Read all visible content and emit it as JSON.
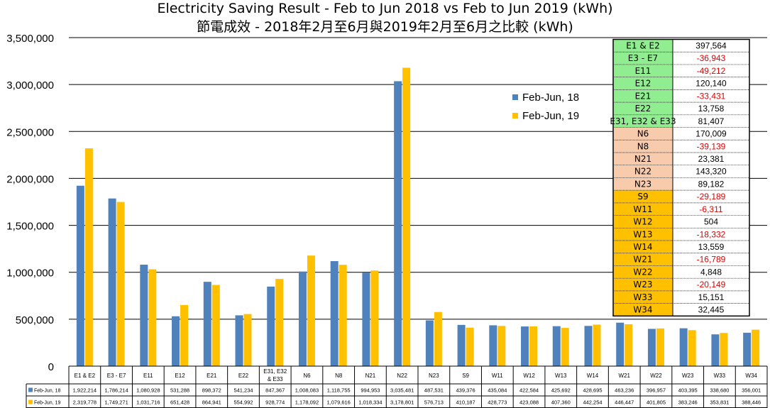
{
  "chart_data": {
    "type": "bar",
    "title": "Electricity Saving Result - Feb to Jun 2018 vs Feb to Jun 2019 (kWh)",
    "subtitle": "節電成效 - 2018年2月至6月與2019年2月至6月之比較 (kWh)",
    "ylim": [
      0,
      3500000
    ],
    "yticks": [
      "0",
      "500,000",
      "1,000,000",
      "1,500,000",
      "2,000,000",
      "2,500,000",
      "3,000,000",
      "3,500,000"
    ],
    "grid": true,
    "legend_position": "top-center",
    "categories": [
      "E1 & E2",
      "E3 - E7",
      "E11",
      "E12",
      "E21",
      "E22",
      "E31, E32 & E33",
      "N6",
      "N8",
      "N21",
      "N22",
      "N23",
      "S9",
      "W11",
      "W12",
      "W13",
      "W14",
      "W21",
      "W22",
      "W23",
      "W33",
      "W34"
    ],
    "series": [
      {
        "name": "Feb-Jun, 18",
        "color": "#4F81BD",
        "values": [
          1922214,
          1786214,
          1080928,
          531288,
          898372,
          541234,
          847367,
          1008083,
          1118755,
          994953,
          3035481,
          487531,
          439376,
          435084,
          422584,
          425692,
          428695,
          463236,
          396957,
          403395,
          338680,
          356001
        ],
        "labels": [
          "1,922,214",
          "1,786,214",
          "1,080,928",
          "531,288",
          "898,372",
          "541,234",
          "847,367",
          "1,008,083",
          "1,118,755",
          "994,953",
          "3,035,481",
          "487,531",
          "439,376",
          "435,084",
          "422,584",
          "425,692",
          "428,695",
          "463,236",
          "396,957",
          "403,395",
          "338,680",
          "356,001"
        ]
      },
      {
        "name": "Feb-Jun, 19",
        "color": "#FFC000",
        "values": [
          2319778,
          1749271,
          1031716,
          651428,
          864941,
          554992,
          928774,
          1178092,
          1079616,
          1018334,
          3178801,
          576713,
          410187,
          428773,
          423088,
          407360,
          442254,
          446447,
          401805,
          383246,
          353831,
          388446
        ],
        "labels": [
          "2,319,778",
          "1,749,271",
          "1,031,716",
          "651,428",
          "864,941",
          "554,992",
          "928,774",
          "1,178,092",
          "1,079,616",
          "1,018,334",
          "3,178,801",
          "576,713",
          "410,187",
          "428,773",
          "423,088",
          "407,360",
          "442,254",
          "446,447",
          "401,805",
          "383,246",
          "353,831",
          "388,446"
        ]
      }
    ],
    "table_short_names": [
      "Feb-Jun, 18",
      "Feb-Jun, 19"
    ],
    "savings_table": [
      {
        "name": "E1 & E2",
        "value": "397,564",
        "negative": false,
        "color": "#90EE90"
      },
      {
        "name": "E3 - E7",
        "value": "-36,943",
        "negative": true,
        "color": "#90EE90"
      },
      {
        "name": "E11",
        "value": "-49,212",
        "negative": true,
        "color": "#90EE90"
      },
      {
        "name": "E12",
        "value": "120,140",
        "negative": false,
        "color": "#90EE90"
      },
      {
        "name": "E21",
        "value": "-33,431",
        "negative": true,
        "color": "#90EE90"
      },
      {
        "name": "E22",
        "value": "13,758",
        "negative": false,
        "color": "#90EE90"
      },
      {
        "name": "E31, E32 & E33",
        "value": "81,407",
        "negative": false,
        "color": "#90EE90"
      },
      {
        "name": "N6",
        "value": "170,009",
        "negative": false,
        "color": "#F8CBAD"
      },
      {
        "name": "N8",
        "value": "-39,139",
        "negative": true,
        "color": "#F8CBAD"
      },
      {
        "name": "N21",
        "value": "23,381",
        "negative": false,
        "color": "#F8CBAD"
      },
      {
        "name": "N22",
        "value": "143,320",
        "negative": false,
        "color": "#F8CBAD"
      },
      {
        "name": "N23",
        "value": "89,182",
        "negative": false,
        "color": "#F8CBAD"
      },
      {
        "name": "S9",
        "value": "-29,189",
        "negative": true,
        "color": "#FFC000"
      },
      {
        "name": "W11",
        "value": "-6,311",
        "negative": true,
        "color": "#FFC000"
      },
      {
        "name": "W12",
        "value": "504",
        "negative": false,
        "color": "#FFC000"
      },
      {
        "name": "W13",
        "value": "-18,332",
        "negative": true,
        "color": "#FFC000"
      },
      {
        "name": "W14",
        "value": "13,559",
        "negative": false,
        "color": "#FFC000"
      },
      {
        "name": "W21",
        "value": "-16,789",
        "negative": true,
        "color": "#FFC000"
      },
      {
        "name": "W22",
        "value": "4,848",
        "negative": false,
        "color": "#FFC000"
      },
      {
        "name": "W23",
        "value": "-20,149",
        "negative": true,
        "color": "#FFC000"
      },
      {
        "name": "W33",
        "value": "15,151",
        "negative": false,
        "color": "#FFC000"
      },
      {
        "name": "W34",
        "value": "32,445",
        "negative": false,
        "color": "#FFC000"
      }
    ]
  }
}
